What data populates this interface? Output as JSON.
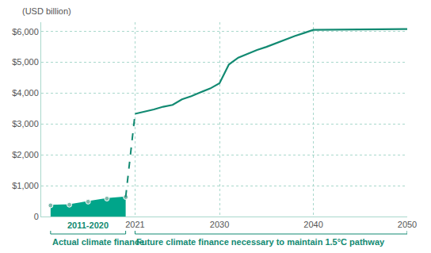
{
  "chart_data": {
    "type": "line",
    "y_label": "(USD billion)",
    "annotations": [
      "2011-2020"
    ],
    "xlim": [
      2011,
      2050
    ],
    "ylim": [
      0,
      6300
    ],
    "xticks": [
      2021,
      2030,
      2040,
      2050
    ],
    "yticks": [
      0,
      {
        "value": 1000,
        "label": "$1,000"
      },
      {
        "value": 2000,
        "label": "$2,000"
      },
      {
        "value": 3000,
        "label": "$3,000"
      },
      {
        "value": 4000,
        "label": "$4,000"
      },
      {
        "value": 5000,
        "label": "$5,000"
      },
      {
        "value": 6000,
        "label": "$6,000"
      }
    ],
    "grid": true,
    "series": [
      {
        "name": "Actual climate finance",
        "type": "area",
        "color": "#00a58a",
        "marker": "circle",
        "x": [
          2012,
          2014,
          2016,
          2018,
          2020
        ],
        "values": [
          360,
          380,
          480,
          580,
          630
        ]
      },
      {
        "name": "Future climate finance necessary to maintain 1.5°C pathway",
        "type": "line",
        "color": "#128a72",
        "line_style": "solid",
        "x": [
          2021,
          2022,
          2023,
          2024,
          2025,
          2026,
          2027,
          2028,
          2029,
          2030,
          2031,
          2032,
          2033,
          2034,
          2035,
          2036,
          2037,
          2038,
          2039,
          2040,
          2050
        ],
        "values": [
          3330,
          3400,
          3470,
          3560,
          3620,
          3800,
          3900,
          4030,
          4150,
          4320,
          4930,
          5150,
          5280,
          5400,
          5500,
          5620,
          5750,
          5850,
          5950,
          6050,
          6080
        ]
      }
    ]
  }
}
